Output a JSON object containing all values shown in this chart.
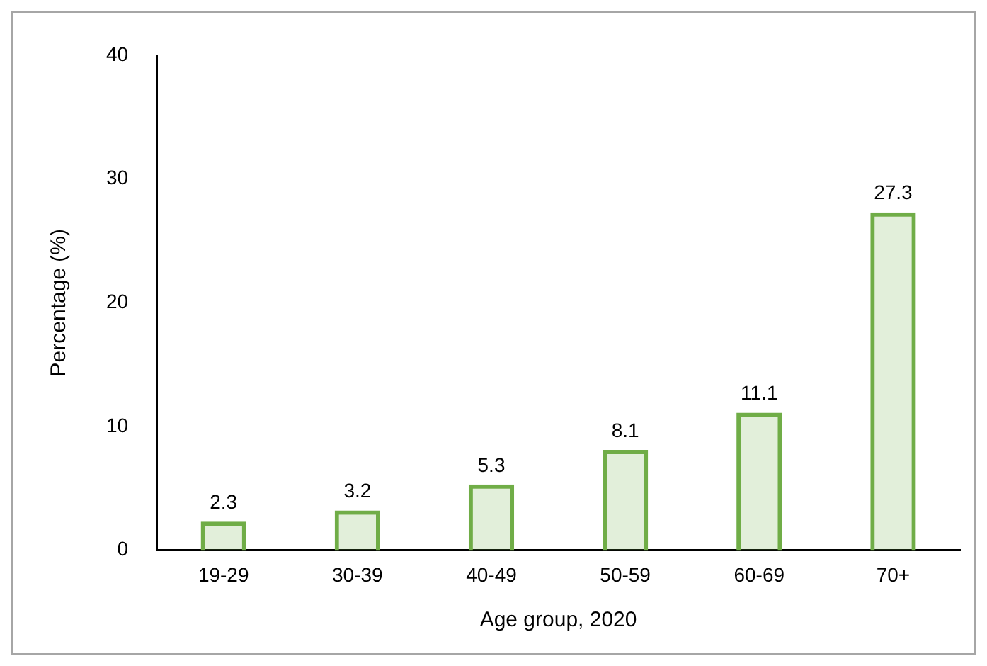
{
  "chart_data": {
    "type": "bar",
    "xlabel": "Age group, 2020",
    "ylabel": "Percentage (%)",
    "categories": [
      "19-29",
      "30-39",
      "40-49",
      "50-59",
      "60-69",
      "70+"
    ],
    "values": [
      2.3,
      3.2,
      5.3,
      8.1,
      11.1,
      27.3
    ],
    "color": "#70ad47",
    "ylim": [
      0,
      40
    ],
    "yticks": [
      0,
      10,
      20,
      30,
      40
    ],
    "grid": false,
    "legend": false,
    "data_labels": true
  }
}
